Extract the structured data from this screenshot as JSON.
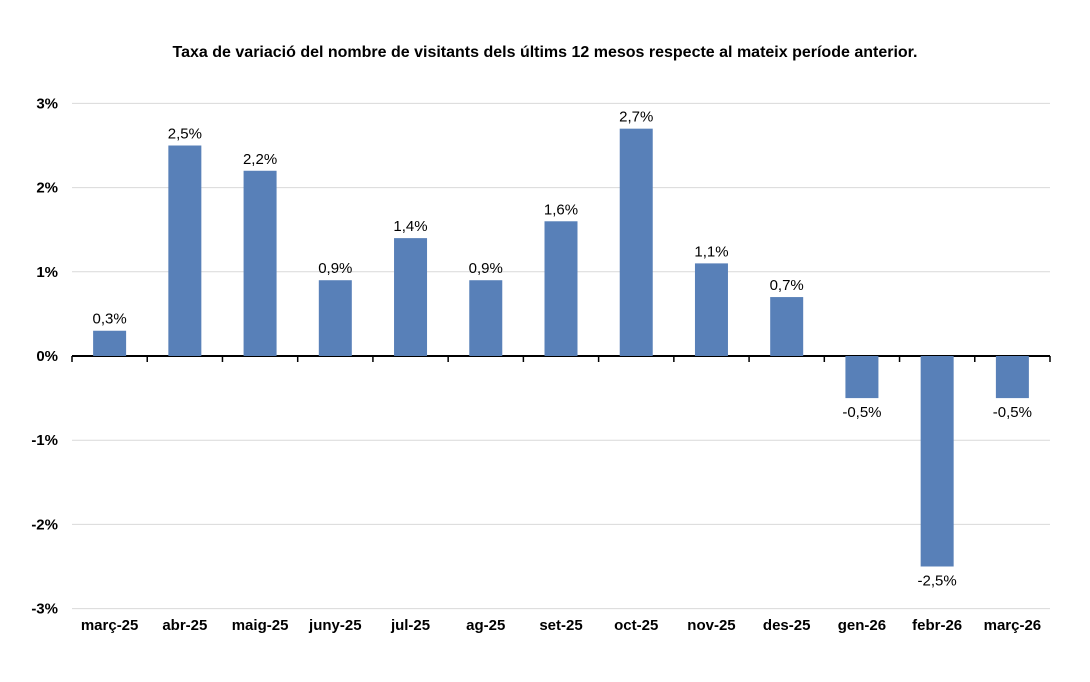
{
  "chart_data": {
    "type": "bar",
    "title": "Taxa de variació del nombre de visitants dels últims 12 mesos respecte al mateix període anterior.",
    "categories": [
      "març-25",
      "abr-25",
      "maig-25",
      "juny-25",
      "jul-25",
      "ag-25",
      "set-25",
      "oct-25",
      "nov-25",
      "des-25",
      "gen-26",
      "febr-26",
      "març-26"
    ],
    "values": [
      0.3,
      2.5,
      2.2,
      0.9,
      1.4,
      0.9,
      1.6,
      2.7,
      1.1,
      0.7,
      -0.5,
      -2.5,
      -0.5
    ],
    "data_labels": [
      "0,3%",
      "2,5%",
      "2,2%",
      "0,9%",
      "1,4%",
      "0,9%",
      "1,6%",
      "2,7%",
      "1,1%",
      "0,7%",
      "-0,5%",
      "-2,5%",
      "-0,5%"
    ],
    "xlabel": "",
    "ylabel": "",
    "ylim": [
      -3,
      3
    ],
    "ytick_step": 1,
    "ytick_labels": [
      "3%",
      "2%",
      "1%",
      "0%",
      "-1%",
      "-2%",
      "-3%"
    ],
    "grid": true,
    "legend": false,
    "series_name": "",
    "colors": {
      "bar": "#5880B8",
      "gridline": "#D9D9D9",
      "axis": "#000000",
      "text": "#000000",
      "background": "#FFFFFF"
    }
  }
}
